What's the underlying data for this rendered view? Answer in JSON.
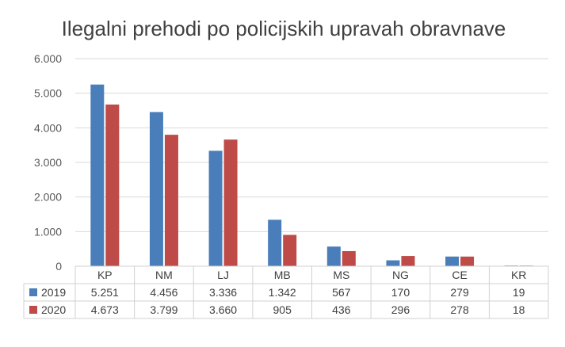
{
  "chart_data": {
    "type": "bar",
    "title": "Ilegalni prehodi po policijskih upravah obravnave",
    "categories": [
      "KP",
      "NM",
      "LJ",
      "MB",
      "MS",
      "NG",
      "CE",
      "KR"
    ],
    "series": [
      {
        "name": "2019",
        "color": "#4a7ebb",
        "values": [
          5251,
          4456,
          3336,
          1342,
          567,
          170,
          279,
          19
        ],
        "value_labels": [
          "5.251",
          "4.456",
          "3.336",
          "1.342",
          "567",
          "170",
          "279",
          "19"
        ]
      },
      {
        "name": "2020",
        "color": "#be4b48",
        "values": [
          4673,
          3799,
          3660,
          905,
          436,
          296,
          278,
          18
        ],
        "value_labels": [
          "4.673",
          "3.799",
          "3.660",
          "905",
          "436",
          "296",
          "278",
          "18"
        ]
      }
    ],
    "ylim": [
      0,
      6000
    ],
    "yticks": [
      0,
      1000,
      2000,
      3000,
      4000,
      5000,
      6000
    ],
    "ytick_labels": [
      "0",
      "1.000",
      "2.000",
      "3.000",
      "4.000",
      "5.000",
      "6.000"
    ],
    "grid": true,
    "legend": "data-table"
  }
}
